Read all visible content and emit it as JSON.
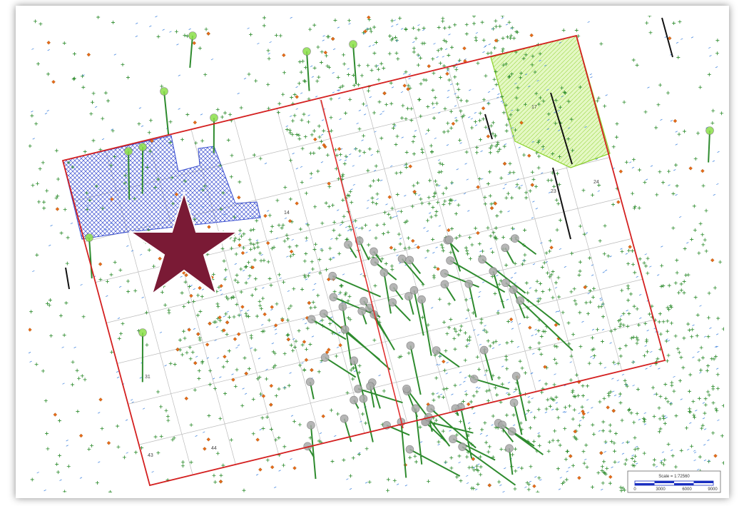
{
  "map": {
    "scale_label": "Scale = 1:72560",
    "scale_ticks": [
      "0",
      "3000",
      "6000",
      "9000"
    ],
    "section_labels": [
      "14",
      "17",
      "23",
      "24",
      "31",
      "43",
      "44"
    ]
  }
}
